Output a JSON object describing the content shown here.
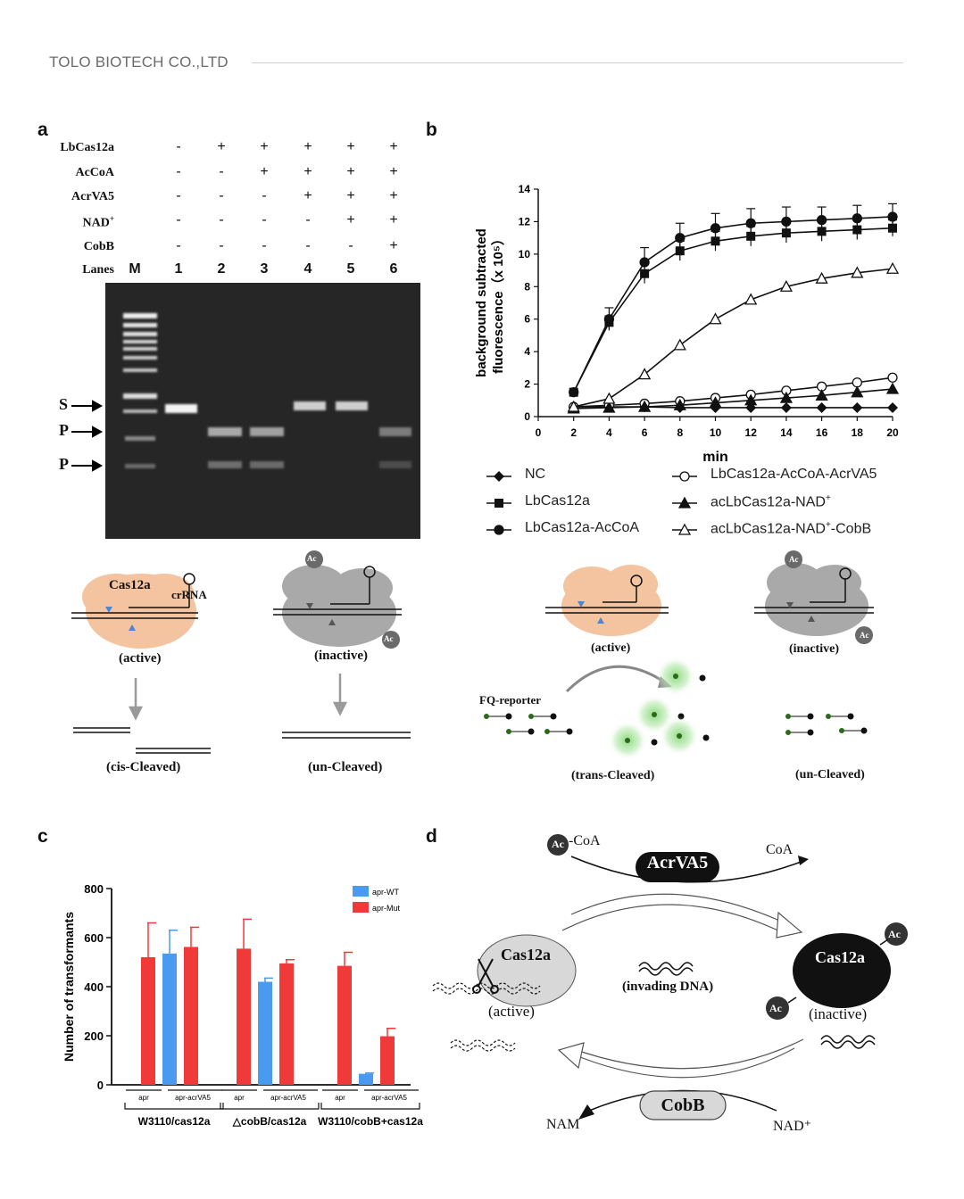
{
  "header": {
    "company": "TOLO BIOTECH CO.,LTD"
  },
  "panel_a": {
    "label": "a",
    "rows": [
      {
        "name": "LbCas12a",
        "values": [
          "-",
          "+",
          "+",
          "+",
          "+",
          "+"
        ]
      },
      {
        "name": "AcCoA",
        "values": [
          "-",
          "-",
          "+",
          "+",
          "+",
          "+"
        ]
      },
      {
        "name": "AcrVA5",
        "values": [
          "-",
          "-",
          "-",
          "+",
          "+",
          "+"
        ]
      },
      {
        "name": "NAD+",
        "values": [
          "-",
          "-",
          "-",
          "-",
          "+",
          "+"
        ]
      },
      {
        "name": "CobB",
        "values": [
          "-",
          "-",
          "-",
          "-",
          "-",
          "+"
        ]
      }
    ],
    "lanes_label": "Lanes",
    "lanes": [
      "M",
      "1",
      "2",
      "3",
      "4",
      "5",
      "6"
    ],
    "markers": [
      "S",
      "P",
      "P"
    ],
    "diagram": {
      "cas_label": "Cas12a",
      "crrna_label": "crRNA",
      "ac": "Ac",
      "active": "(active)",
      "inactive": "(inactive)",
      "cis": "(cis-Cleaved)",
      "uncleaved": "(un-Cleaved)"
    }
  },
  "panel_b": {
    "label": "b",
    "diagram": {
      "active": "(active)",
      "inactive": "(inactive)",
      "reporter": "FQ-reporter",
      "trans": "(trans-Cleaved)",
      "uncleaved": "(un-Cleaved)",
      "ac": "Ac"
    }
  },
  "panel_c": {
    "label": "c"
  },
  "panel_d": {
    "label": "d",
    "ac": "Ac",
    "coa_in": "-CoA",
    "coa_out": "CoA",
    "acrva5": "AcrVA5",
    "cas_active": "Cas12a",
    "cas_inactive": "Cas12a",
    "active": "(active)",
    "inactive": "(inactive)",
    "invading": "(invading DNA)",
    "cobb": "CobB",
    "nam": "NAM",
    "nad": "NAD⁺"
  },
  "chart_data": [
    {
      "type": "line",
      "panel": "b",
      "xlabel": "min",
      "ylabel": "background subtracted fluorescence（x 10⁵）",
      "ylabel_line1": "background subtracted",
      "ylabel_line2": "fluorescence（x 10⁵）",
      "xlim": [
        0,
        20
      ],
      "ylim": [
        0,
        14
      ],
      "xticks": [
        0,
        2,
        4,
        6,
        8,
        10,
        12,
        14,
        16,
        18,
        20
      ],
      "yticks": [
        0,
        2,
        4,
        6,
        8,
        10,
        12,
        14
      ],
      "x": [
        2,
        4,
        6,
        8,
        10,
        12,
        14,
        16,
        18,
        20
      ],
      "series": [
        {
          "name": "NC",
          "marker": "diamond",
          "values": [
            0.6,
            0.6,
            0.6,
            0.55,
            0.55,
            0.55,
            0.55,
            0.55,
            0.55,
            0.55
          ],
          "err": [
            0,
            0,
            0,
            0,
            0,
            0,
            0,
            0,
            0,
            0
          ]
        },
        {
          "name": "LbCas12a",
          "marker": "square",
          "values": [
            1.5,
            5.8,
            8.8,
            10.2,
            10.8,
            11.1,
            11.3,
            11.4,
            11.5,
            11.6
          ],
          "err": [
            0.1,
            0.4,
            0.6,
            0.6,
            0.6,
            0.6,
            0.6,
            0.6,
            0.6,
            0.5
          ]
        },
        {
          "name": "LbCas12a-AcCoA",
          "marker": "circle",
          "values": [
            1.5,
            6.0,
            9.5,
            11.0,
            11.6,
            11.9,
            12.0,
            12.1,
            12.2,
            12.3
          ],
          "err": [
            0.1,
            0.7,
            0.9,
            0.9,
            0.9,
            0.9,
            0.9,
            0.8,
            0.8,
            0.8
          ]
        },
        {
          "name": "LbCas12a-AcCoA-AcrVA5",
          "marker": "circle-open",
          "values": [
            0.6,
            0.7,
            0.8,
            0.95,
            1.15,
            1.35,
            1.6,
            1.85,
            2.1,
            2.4
          ],
          "err": [
            0,
            0,
            0,
            0,
            0,
            0,
            0,
            0,
            0,
            0
          ]
        },
        {
          "name": "acLbCas12a-NAD⁺",
          "marker": "triangle",
          "values": [
            0.5,
            0.55,
            0.6,
            0.7,
            0.85,
            1.0,
            1.15,
            1.3,
            1.5,
            1.7
          ],
          "err": [
            0,
            0,
            0,
            0,
            0,
            0,
            0,
            0,
            0,
            0
          ]
        },
        {
          "name": "acLbCas12a-NAD⁺-CobB",
          "marker": "triangle-open",
          "values": [
            0.6,
            1.1,
            2.6,
            4.4,
            6.0,
            7.2,
            8.0,
            8.5,
            8.85,
            9.1
          ],
          "err": [
            0,
            0,
            0,
            0,
            0,
            0,
            0,
            0,
            0,
            0
          ]
        }
      ],
      "legend_left": [
        "NC",
        "LbCas12a",
        "LbCas12a-AcCoA"
      ],
      "legend_right": [
        "LbCas12a-AcCoA-AcrVA5",
        "acLbCas12a-NAD⁺",
        "acLbCas12a-NAD⁺-CobB"
      ]
    },
    {
      "type": "bar",
      "panel": "c",
      "ylabel": "Number of transformants",
      "ylim": [
        0,
        800
      ],
      "yticks": [
        0,
        200,
        400,
        600,
        800
      ],
      "groups": [
        "W3110/cas12a",
        "△cobB/cas12a",
        "W3110/cobB+cas12a"
      ],
      "subgroups": [
        "apr",
        "apr-acrVA5"
      ],
      "legend": [
        {
          "name": "apr-WT",
          "color": "#4a9bf0"
        },
        {
          "name": "apr-Mut",
          "color": "#f03a3a"
        }
      ],
      "bars": [
        {
          "group": 0,
          "subgroup": "apr",
          "series": "apr-Mut",
          "value": 520,
          "err": 140
        },
        {
          "group": 0,
          "subgroup": "apr-acrVA5",
          "series": "apr-WT",
          "value": 535,
          "err": 95
        },
        {
          "group": 0,
          "subgroup": "apr-acrVA5",
          "series": "apr-Mut",
          "value": 562,
          "err": 80
        },
        {
          "group": 1,
          "subgroup": "apr",
          "series": "apr-Mut",
          "value": 555,
          "err": 120
        },
        {
          "group": 1,
          "subgroup": "apr-acrVA5",
          "series": "apr-WT",
          "value": 420,
          "err": 15
        },
        {
          "group": 1,
          "subgroup": "apr-acrVA5",
          "series": "apr-Mut",
          "value": 495,
          "err": 15
        },
        {
          "group": 2,
          "subgroup": "apr",
          "series": "apr-Mut",
          "value": 485,
          "err": 55
        },
        {
          "group": 2,
          "subgroup": "apr-acrVA5",
          "series": "apr-WT",
          "value": 45,
          "err": 3
        },
        {
          "group": 2,
          "subgroup": "apr-acrVA5",
          "series": "apr-Mut",
          "value": 198,
          "err": 32
        }
      ]
    }
  ]
}
